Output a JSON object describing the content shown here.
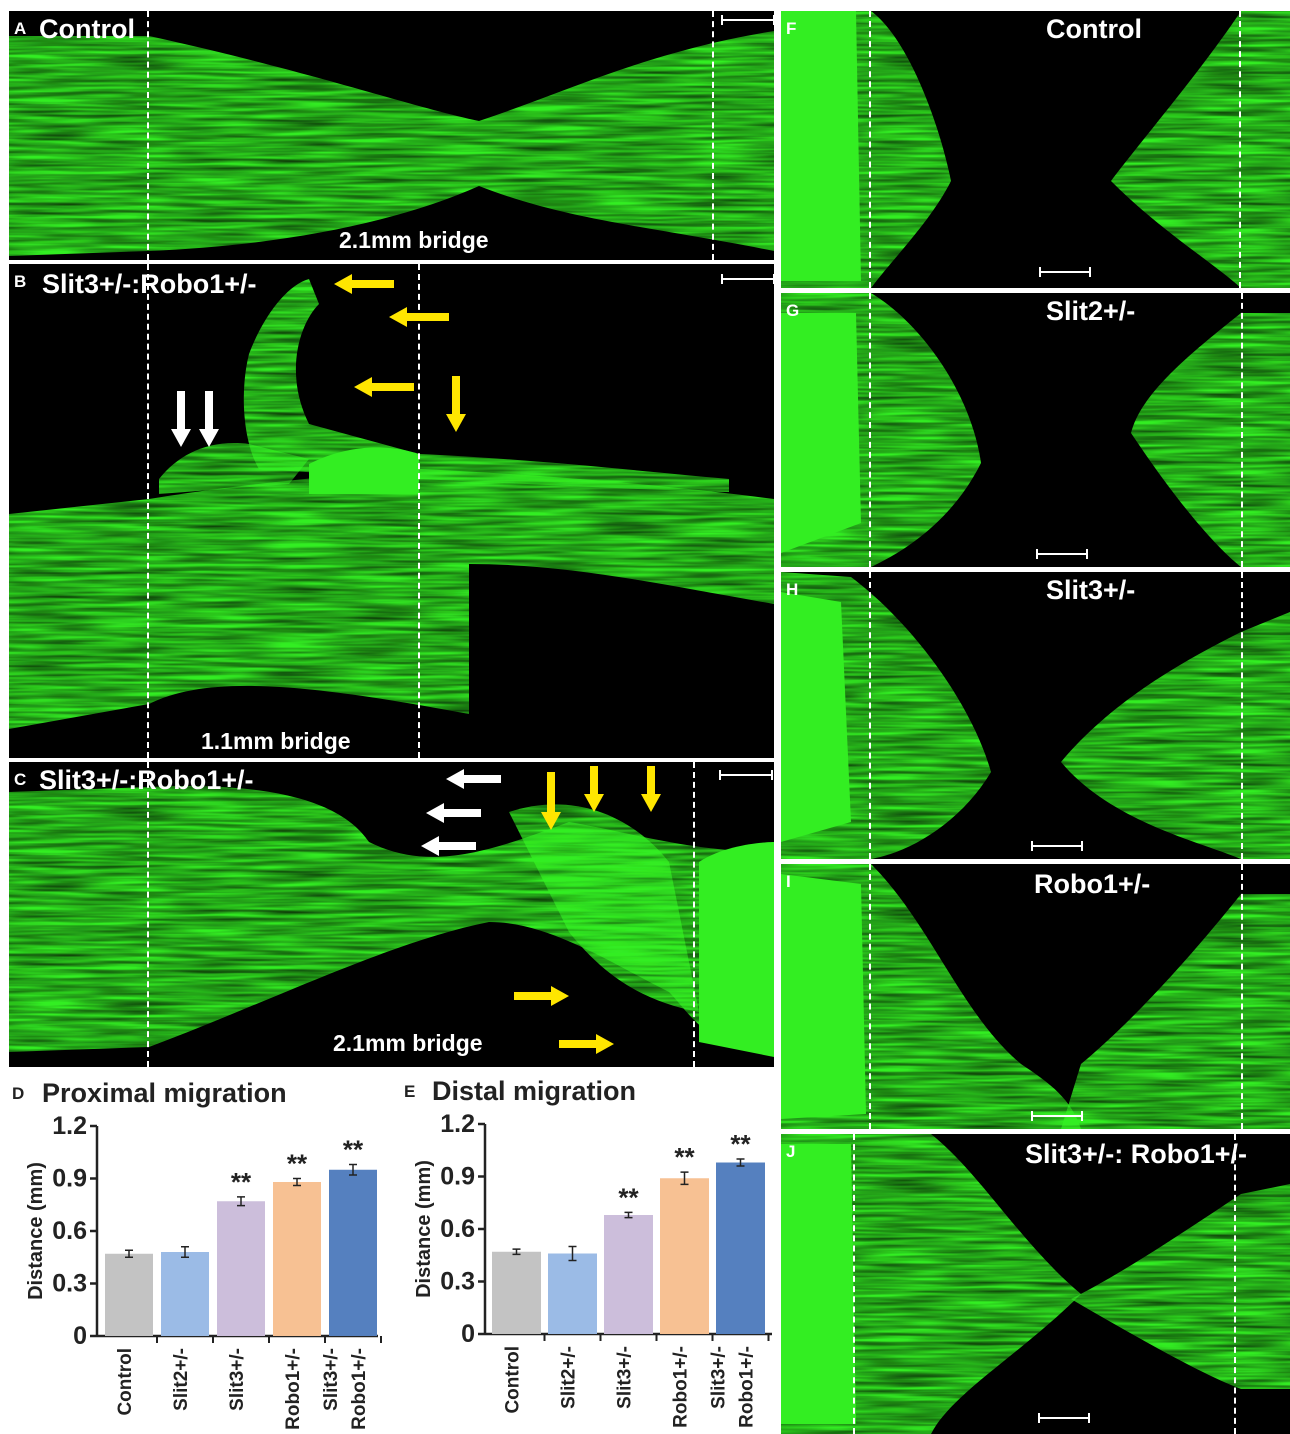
{
  "panels": {
    "A": {
      "letter": "A",
      "title": "Control",
      "bridge": "2.1mm bridge"
    },
    "B": {
      "letter": "B",
      "title": "Slit3+/-:Robo1+/-",
      "bridge": "1.1mm bridge"
    },
    "C": {
      "letter": "C",
      "title": "Slit3+/-:Robo1+/-",
      "bridge": "2.1mm bridge"
    },
    "F": {
      "letter": "F",
      "title": "Control"
    },
    "G": {
      "letter": "G",
      "title": "Slit2+/-"
    },
    "H": {
      "letter": "H",
      "title": "Slit3+/-"
    },
    "I": {
      "letter": "I",
      "title": "Robo1+/-"
    },
    "J": {
      "letter": "J",
      "title": "Slit3+/-: Robo1+/-"
    }
  },
  "colors": {
    "fluorescence": "#33ee22",
    "background": "#000000",
    "yellow_arrow": "#ffe600",
    "white_arrow": "#ffffff"
  },
  "chart_data": [
    {
      "type": "bar",
      "letter": "D",
      "title": "Proximal migration",
      "ylabel": "Distance (mm)",
      "categories": [
        "Control",
        "Slit2+/-",
        "Slit3+/-",
        "Robo1+/-",
        "Slit3+/- Robo1+/-"
      ],
      "values": [
        0.47,
        0.48,
        0.77,
        0.88,
        0.95
      ],
      "errors": [
        0.02,
        0.03,
        0.025,
        0.02,
        0.03
      ],
      "significance": [
        "",
        "",
        "**",
        "**",
        "**"
      ],
      "colors": [
        "#c3c3c3",
        "#9bbbe6",
        "#ccbedb",
        "#f7c193",
        "#5580bf"
      ],
      "yticks": [
        "0",
        "0.3",
        "0.6",
        "0.9",
        "1.2"
      ],
      "ylim": [
        0,
        1.2
      ]
    },
    {
      "type": "bar",
      "letter": "E",
      "title": "Distal migration",
      "ylabel": "Distance (mm)",
      "categories": [
        "Control",
        "Slit2+/-",
        "Slit3+/-",
        "Robo1+/-",
        "Slit3+/- Robo1+/-"
      ],
      "values": [
        0.47,
        0.46,
        0.68,
        0.89,
        0.98
      ],
      "errors": [
        0.015,
        0.04,
        0.015,
        0.035,
        0.02
      ],
      "significance": [
        "",
        "",
        "**",
        "**",
        "**"
      ],
      "colors": [
        "#c3c3c3",
        "#9bbbe6",
        "#ccbedb",
        "#f7c193",
        "#5580bf"
      ],
      "yticks": [
        "0",
        "0.3",
        "0.6",
        "0.9",
        "1.2"
      ],
      "ylim": [
        0,
        1.2
      ]
    }
  ]
}
